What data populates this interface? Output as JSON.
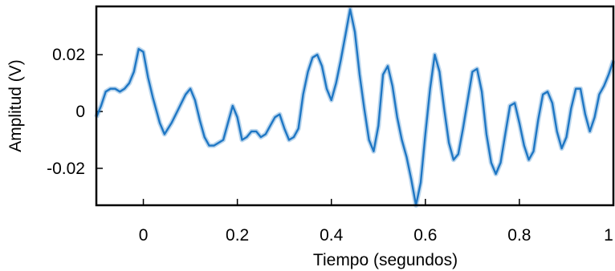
{
  "chart_data": {
    "type": "line",
    "title": "",
    "xlabel": "Tiempo (segundos)",
    "ylabel": "Amplitud (V)",
    "xlim": [
      -0.1,
      1.0
    ],
    "ylim": [
      -0.033,
      0.037
    ],
    "grid": false,
    "x_ticks": [
      0,
      0.2,
      0.4,
      0.6,
      0.8,
      1
    ],
    "x_tick_labels": [
      "0",
      "0.2",
      "0.4",
      "0.6",
      "0.8",
      "1"
    ],
    "y_ticks": [
      0.02,
      0,
      -0.02
    ],
    "y_tick_labels": [
      "0.02",
      "0",
      "-0.02"
    ],
    "series": [
      {
        "color": "#1f77c4",
        "x": [
          -0.1,
          -0.09,
          -0.08,
          -0.07,
          -0.06,
          -0.05,
          -0.04,
          -0.03,
          -0.02,
          -0.01,
          0.0,
          0.01,
          0.02,
          0.035,
          0.045,
          0.06,
          0.075,
          0.09,
          0.1,
          0.11,
          0.12,
          0.13,
          0.14,
          0.15,
          0.16,
          0.17,
          0.18,
          0.19,
          0.2,
          0.21,
          0.22,
          0.23,
          0.24,
          0.25,
          0.26,
          0.27,
          0.28,
          0.29,
          0.3,
          0.31,
          0.32,
          0.33,
          0.34,
          0.35,
          0.36,
          0.37,
          0.38,
          0.39,
          0.4,
          0.41,
          0.42,
          0.43,
          0.44,
          0.45,
          0.46,
          0.47,
          0.48,
          0.49,
          0.5,
          0.51,
          0.52,
          0.53,
          0.54,
          0.55,
          0.56,
          0.57,
          0.58,
          0.59,
          0.6,
          0.61,
          0.62,
          0.63,
          0.64,
          0.65,
          0.66,
          0.67,
          0.68,
          0.69,
          0.7,
          0.71,
          0.72,
          0.73,
          0.74,
          0.75,
          0.76,
          0.77,
          0.78,
          0.79,
          0.8,
          0.81,
          0.82,
          0.83,
          0.84,
          0.85,
          0.86,
          0.87,
          0.88,
          0.89,
          0.9,
          0.91,
          0.92,
          0.93,
          0.94,
          0.95,
          0.96,
          0.97,
          0.98,
          0.99,
          1.0
        ],
        "y": [
          -0.002,
          0.002,
          0.007,
          0.008,
          0.008,
          0.007,
          0.008,
          0.01,
          0.014,
          0.022,
          0.021,
          0.012,
          0.005,
          -0.004,
          -0.008,
          -0.004,
          0.001,
          0.006,
          0.008,
          0.004,
          -0.003,
          -0.009,
          -0.012,
          -0.012,
          -0.011,
          -0.01,
          -0.004,
          0.002,
          -0.002,
          -0.01,
          -0.009,
          -0.007,
          -0.007,
          -0.009,
          -0.008,
          -0.005,
          -0.002,
          -0.001,
          -0.006,
          -0.01,
          -0.009,
          -0.006,
          0.006,
          0.014,
          0.019,
          0.02,
          0.016,
          0.008,
          0.004,
          0.01,
          0.018,
          0.027,
          0.036,
          0.028,
          0.013,
          0.001,
          -0.01,
          -0.014,
          -0.005,
          0.013,
          0.016,
          0.009,
          -0.002,
          -0.01,
          -0.016,
          -0.024,
          -0.033,
          -0.025,
          -0.008,
          0.008,
          0.02,
          0.014,
          0.001,
          -0.011,
          -0.017,
          -0.015,
          -0.006,
          0.004,
          0.014,
          0.015,
          0.007,
          -0.008,
          -0.018,
          -0.022,
          -0.018,
          -0.008,
          0.002,
          0.003,
          -0.004,
          -0.012,
          -0.017,
          -0.014,
          -0.003,
          0.006,
          0.007,
          0.003,
          -0.007,
          -0.013,
          -0.009,
          0.001,
          0.008,
          0.008,
          -0.001,
          -0.007,
          -0.002,
          0.006,
          0.009,
          0.013,
          0.018
        ]
      }
    ]
  }
}
